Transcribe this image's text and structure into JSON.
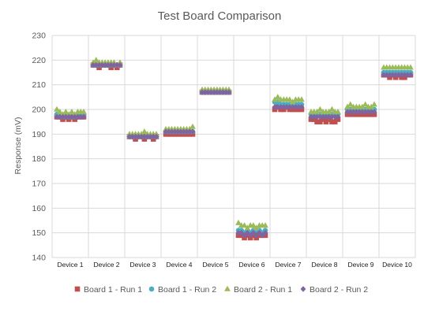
{
  "chart_data": {
    "type": "scatter",
    "title": "Test Board Comparison",
    "ylabel": "Response (mV)",
    "xlabel": "",
    "ylim": [
      140,
      230
    ],
    "yticks": [
      140,
      150,
      160,
      170,
      180,
      190,
      200,
      210,
      220,
      230
    ],
    "grid": true,
    "legend_position": "bottom",
    "categories": [
      "Device 1",
      "Device 2",
      "Device 3",
      "Device 4",
      "Device 5",
      "Device 6",
      "Device 7",
      "Device 8",
      "Device 9",
      "Device 10"
    ],
    "points_per_category": 10,
    "series": [
      {
        "name": "Board 1 - Run 1",
        "color": "#c0504d",
        "marker": "square",
        "values": [
          [
            197,
            197,
            196,
            197,
            196,
            197,
            196,
            197,
            197,
            197
          ],
          [
            218,
            218,
            217,
            218,
            218,
            218,
            217,
            218,
            217,
            218
          ],
          [
            189,
            189,
            188,
            189,
            189,
            188,
            189,
            189,
            188,
            189
          ],
          [
            190,
            190,
            190,
            190,
            190,
            190,
            190,
            190,
            190,
            190
          ],
          [
            207,
            207,
            207,
            207,
            207,
            207,
            207,
            207,
            207,
            207
          ],
          [
            149,
            149,
            148,
            149,
            148,
            149,
            148,
            149,
            149,
            149
          ],
          [
            200,
            201,
            200,
            200,
            201,
            200,
            200,
            200,
            200,
            200
          ],
          [
            196,
            196,
            195,
            195,
            196,
            195,
            196,
            195,
            195,
            196
          ],
          [
            198,
            198,
            198,
            198,
            198,
            198,
            198,
            198,
            198,
            198
          ],
          [
            214,
            214,
            213,
            214,
            213,
            214,
            213,
            213,
            214,
            214
          ]
        ]
      },
      {
        "name": "Board 1 - Run 2",
        "color": "#4bacc6",
        "marker": "circle",
        "values": [
          [
            198,
            198,
            197,
            198,
            197,
            197,
            197,
            198,
            198,
            198
          ],
          [
            218,
            218,
            218,
            218,
            218,
            218,
            218,
            218,
            218,
            218
          ],
          [
            189,
            189,
            189,
            189,
            189,
            189,
            189,
            189,
            189,
            189
          ],
          [
            191,
            191,
            191,
            191,
            191,
            191,
            191,
            191,
            191,
            191
          ],
          [
            207,
            207,
            207,
            207,
            207,
            207,
            207,
            207,
            207,
            207
          ],
          [
            151,
            151,
            150,
            151,
            150,
            151,
            150,
            151,
            150,
            151
          ],
          [
            203,
            203,
            202,
            202,
            202,
            202,
            202,
            202,
            202,
            202
          ],
          [
            198,
            198,
            198,
            198,
            198,
            198,
            198,
            198,
            198,
            198
          ],
          [
            200,
            200,
            200,
            200,
            200,
            200,
            200,
            200,
            200,
            200
          ],
          [
            215,
            215,
            215,
            215,
            215,
            215,
            215,
            215,
            215,
            215
          ]
        ]
      },
      {
        "name": "Board 2 - Run 1",
        "color": "#9bbb59",
        "marker": "triangle",
        "values": [
          [
            200,
            199,
            198,
            199,
            198,
            199,
            198,
            199,
            199,
            199
          ],
          [
            219,
            220,
            219,
            219,
            219,
            219,
            219,
            219,
            218,
            219
          ],
          [
            190,
            190,
            190,
            190,
            190,
            191,
            190,
            190,
            190,
            190
          ],
          [
            192,
            192,
            192,
            192,
            192,
            192,
            192,
            192,
            192,
            193
          ],
          [
            208,
            208,
            208,
            208,
            208,
            208,
            208,
            208,
            208,
            208
          ],
          [
            154,
            153,
            153,
            152,
            153,
            153,
            152,
            153,
            153,
            153
          ],
          [
            204,
            205,
            204,
            204,
            204,
            204,
            203,
            204,
            204,
            204
          ],
          [
            199,
            199,
            199,
            200,
            199,
            199,
            199,
            200,
            199,
            199
          ],
          [
            201,
            202,
            201,
            201,
            201,
            201,
            202,
            201,
            201,
            202
          ],
          [
            217,
            217,
            217,
            217,
            217,
            217,
            217,
            217,
            217,
            217
          ]
        ]
      },
      {
        "name": "Board 2 - Run 2",
        "color": "#8064a2",
        "marker": "diamond",
        "values": [
          [
            197,
            197,
            197,
            197,
            197,
            197,
            197,
            197,
            197,
            197
          ],
          [
            218,
            218,
            218,
            218,
            218,
            218,
            218,
            218,
            218,
            218
          ],
          [
            189,
            189,
            189,
            189,
            189,
            189,
            189,
            189,
            189,
            189
          ],
          [
            191,
            191,
            191,
            191,
            191,
            191,
            191,
            191,
            191,
            191
          ],
          [
            207,
            207,
            207,
            207,
            207,
            207,
            207,
            207,
            207,
            207
          ],
          [
            150,
            150,
            149,
            150,
            149,
            150,
            149,
            150,
            149,
            150
          ],
          [
            201,
            201,
            201,
            201,
            201,
            201,
            201,
            201,
            201,
            201
          ],
          [
            197,
            197,
            197,
            197,
            197,
            197,
            197,
            197,
            197,
            197
          ],
          [
            199,
            199,
            199,
            199,
            199,
            199,
            199,
            199,
            199,
            199
          ],
          [
            214,
            214,
            214,
            214,
            214,
            214,
            214,
            214,
            214,
            214
          ]
        ]
      }
    ]
  }
}
